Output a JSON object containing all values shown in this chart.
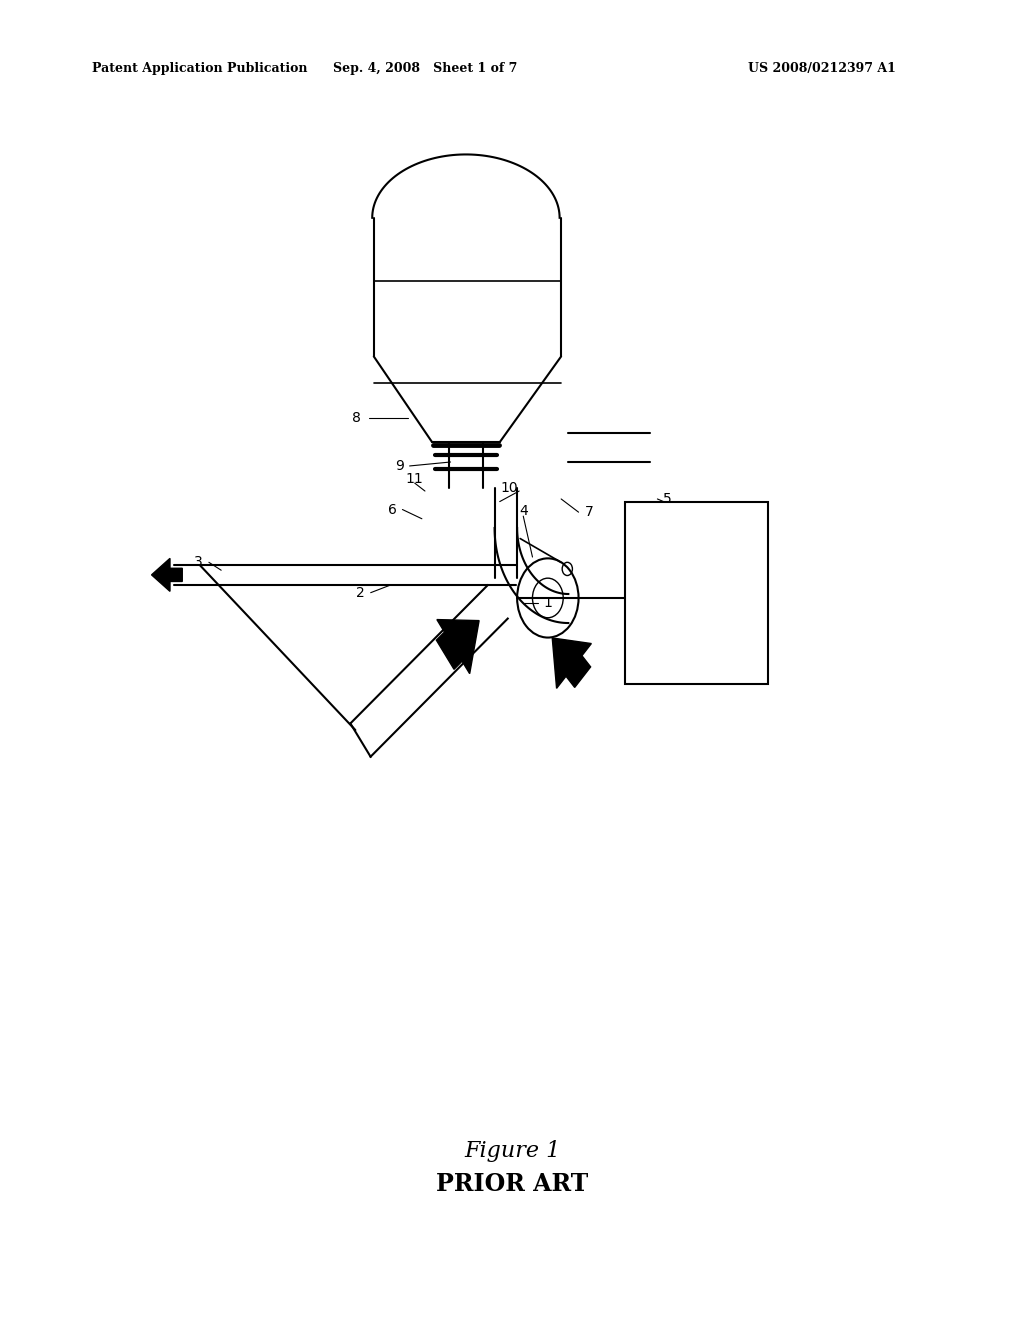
{
  "bg_color": "#ffffff",
  "text_color": "#000000",
  "line_color": "#000000",
  "header_left": "Patent Application Publication",
  "header_mid": "Sep. 4, 2008   Sheet 1 of 7",
  "header_right": "US 2008/0212397 A1",
  "caption_line1": "Figure 1",
  "caption_line2": "PRIOR ART"
}
